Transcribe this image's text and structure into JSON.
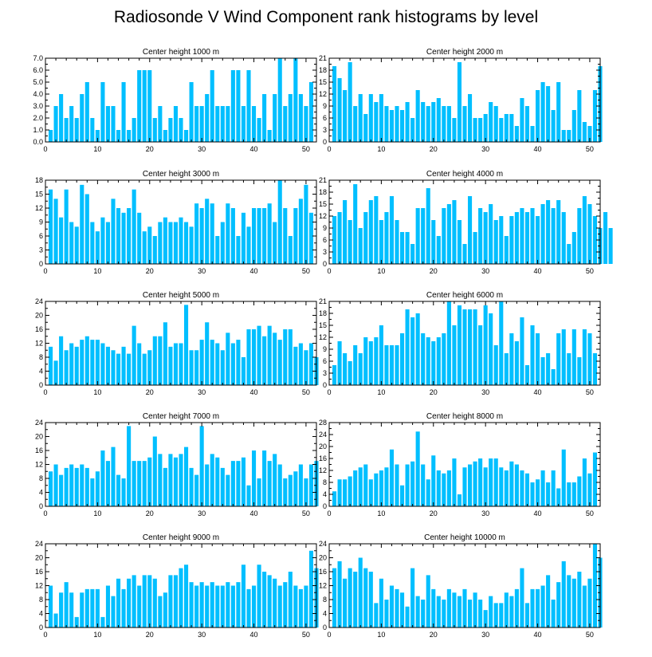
{
  "title": "Radiosonde V Wind Component rank histograms by level",
  "colors": {
    "bar": "#00bfff",
    "axis": "#000000"
  },
  "chart_data": [
    {
      "type": "bar",
      "title": "Center height 1000 m",
      "xlim": [
        0,
        52
      ],
      "ylim": [
        0,
        7
      ],
      "xticks": [
        0,
        10,
        20,
        30,
        40,
        50
      ],
      "yticks": [
        0.0,
        1.0,
        2.0,
        3.0,
        4.0,
        5.0,
        6.0,
        7.0
      ],
      "ytick_labels": [
        "0.0",
        "1.0",
        "2.0",
        "3.0",
        "4.0",
        "5.0",
        "6.0",
        "7.0"
      ],
      "values": [
        1,
        3,
        4,
        2,
        3,
        2,
        4,
        5,
        2,
        1,
        5,
        3,
        3,
        1,
        5,
        1,
        2,
        6,
        6,
        6,
        2,
        3,
        1,
        2,
        3,
        2,
        1,
        5,
        3,
        3,
        4,
        6,
        3,
        3,
        3,
        6,
        6,
        3,
        6,
        3,
        2,
        4,
        1,
        4,
        7,
        3,
        4,
        7,
        4,
        3,
        5
      ]
    },
    {
      "type": "bar",
      "title": "Center height 2000 m",
      "xlim": [
        0,
        52
      ],
      "ylim": [
        0,
        21
      ],
      "xticks": [
        0,
        10,
        20,
        30,
        40,
        50
      ],
      "yticks": [
        0,
        3,
        6,
        9,
        12,
        15,
        18,
        21
      ],
      "ytick_labels": [
        "0",
        "3",
        "6",
        "9",
        "12",
        "15",
        "18",
        "21"
      ],
      "values": [
        19,
        16,
        13,
        20,
        9,
        12,
        7,
        12,
        10,
        12,
        9,
        8,
        9,
        8,
        10,
        6,
        13,
        10,
        9,
        10,
        11,
        9,
        9,
        6,
        20,
        9,
        12,
        6,
        6,
        7,
        10,
        9,
        6,
        7,
        7,
        4,
        11,
        9,
        4,
        13,
        15,
        14,
        8,
        15,
        3,
        3,
        8,
        13,
        5,
        4,
        13,
        19
      ]
    },
    {
      "type": "bar",
      "title": "Center height 3000 m",
      "xlim": [
        0,
        52
      ],
      "ylim": [
        0,
        18
      ],
      "xticks": [
        0,
        10,
        20,
        30,
        40,
        50
      ],
      "yticks": [
        0,
        3,
        6,
        9,
        12,
        15,
        18
      ],
      "ytick_labels": [
        "0",
        "3",
        "6",
        "9",
        "12",
        "15",
        "18"
      ],
      "values": [
        16,
        14,
        10,
        16,
        9,
        8,
        17,
        15,
        9,
        7,
        10,
        9,
        14,
        12,
        11,
        12,
        16,
        11,
        7,
        8,
        6,
        9,
        10,
        9,
        9,
        10,
        9,
        8,
        13,
        12,
        14,
        13,
        6,
        9,
        13,
        12,
        6,
        11,
        8,
        12,
        12,
        12,
        13,
        9,
        18,
        12,
        6,
        12,
        14,
        17,
        11
      ]
    },
    {
      "type": "bar",
      "title": "Center height 4000 m",
      "xlim": [
        0,
        52
      ],
      "ylim": [
        0,
        21
      ],
      "xticks": [
        0,
        10,
        20,
        30,
        40,
        50
      ],
      "yticks": [
        0,
        3,
        6,
        9,
        12,
        15,
        18,
        21
      ],
      "ytick_labels": [
        "0",
        "3",
        "6",
        "9",
        "12",
        "15",
        "18",
        "21"
      ],
      "values": [
        12,
        13,
        16,
        11,
        20,
        9,
        13,
        16,
        17,
        11,
        13,
        17,
        11,
        8,
        8,
        5,
        14,
        14,
        19,
        11,
        7,
        14,
        15,
        16,
        11,
        5,
        17,
        8,
        14,
        13,
        15,
        11,
        12,
        7,
        12,
        13,
        14,
        13,
        14,
        12,
        15,
        16,
        14,
        16,
        13,
        5,
        8,
        14,
        17,
        15,
        12,
        9,
        13,
        9
      ]
    },
    {
      "type": "bar",
      "title": "Center height 5000 m",
      "xlim": [
        0,
        52
      ],
      "ylim": [
        0,
        24
      ],
      "xticks": [
        0,
        10,
        20,
        30,
        40,
        50
      ],
      "yticks": [
        0,
        4,
        8,
        12,
        16,
        20,
        24
      ],
      "ytick_labels": [
        "0",
        "4",
        "8",
        "12",
        "16",
        "20",
        "24"
      ],
      "values": [
        11,
        7,
        14,
        10,
        12,
        11,
        13,
        14,
        13,
        13,
        12,
        11,
        10,
        9,
        11,
        9,
        17,
        12,
        9,
        10,
        14,
        14,
        18,
        11,
        12,
        12,
        23,
        10,
        10,
        13,
        18,
        13,
        12,
        10,
        15,
        12,
        13,
        8,
        16,
        16,
        17,
        14,
        17,
        15,
        13,
        16,
        16,
        11,
        12,
        10,
        12,
        8
      ]
    },
    {
      "type": "bar",
      "title": "Center height 6000 m",
      "xlim": [
        0,
        52
      ],
      "ylim": [
        0,
        21
      ],
      "xticks": [
        0,
        10,
        20,
        30,
        40,
        50
      ],
      "yticks": [
        0,
        3,
        6,
        9,
        12,
        15,
        18,
        21
      ],
      "ytick_labels": [
        "0",
        "3",
        "6",
        "9",
        "12",
        "15",
        "18",
        "21"
      ],
      "values": [
        5,
        11,
        8,
        6,
        10,
        8,
        12,
        11,
        12,
        15,
        10,
        10,
        10,
        13,
        19,
        17,
        18,
        13,
        12,
        11,
        12,
        13,
        21,
        15,
        20,
        19,
        19,
        19,
        15,
        20,
        18,
        10,
        21,
        8,
        13,
        11,
        17,
        5,
        15,
        13,
        7,
        8,
        4,
        13,
        14,
        8,
        14,
        7,
        14,
        13,
        8
      ]
    },
    {
      "type": "bar",
      "title": "Center height 7000 m",
      "xlim": [
        0,
        52
      ],
      "ylim": [
        0,
        24
      ],
      "xticks": [
        0,
        10,
        20,
        30,
        40,
        50
      ],
      "yticks": [
        0,
        4,
        8,
        12,
        16,
        20,
        24
      ],
      "ytick_labels": [
        "0",
        "4",
        "8",
        "12",
        "16",
        "20",
        "24"
      ],
      "values": [
        10,
        12,
        9,
        11,
        12,
        11,
        12,
        11,
        8,
        10,
        16,
        13,
        17,
        9,
        8,
        23,
        13,
        13,
        13,
        14,
        20,
        15,
        11,
        15,
        14,
        15,
        17,
        11,
        9,
        23,
        12,
        15,
        14,
        11,
        9,
        13,
        13,
        14,
        6,
        16,
        8,
        16,
        13,
        15,
        12,
        8,
        9,
        10,
        12,
        8,
        12,
        13
      ]
    },
    {
      "type": "bar",
      "title": "Center height 8000 m",
      "xlim": [
        0,
        52
      ],
      "ylim": [
        0,
        28
      ],
      "xticks": [
        0,
        10,
        20,
        30,
        40,
        50
      ],
      "yticks": [
        0,
        4,
        8,
        12,
        16,
        20,
        24,
        28
      ],
      "ytick_labels": [
        "0",
        "4",
        "8",
        "12",
        "16",
        "20",
        "24",
        "28"
      ],
      "values": [
        5,
        9,
        9,
        10,
        12,
        13,
        14,
        9,
        11,
        12,
        13,
        19,
        14,
        7,
        14,
        15,
        25,
        14,
        9,
        17,
        12,
        11,
        12,
        16,
        4,
        13,
        14,
        15,
        16,
        13,
        16,
        16,
        13,
        12,
        15,
        14,
        12,
        11,
        8,
        9,
        12,
        8,
        12,
        6,
        19,
        8,
        8,
        10,
        16,
        11,
        18
      ]
    },
    {
      "type": "bar",
      "title": "Center height 9000 m",
      "xlim": [
        0,
        52
      ],
      "ylim": [
        0,
        24
      ],
      "xticks": [
        0,
        10,
        20,
        30,
        40,
        50
      ],
      "yticks": [
        0,
        4,
        8,
        12,
        16,
        20,
        24
      ],
      "ytick_labels": [
        "0",
        "4",
        "8",
        "12",
        "16",
        "20",
        "24"
      ],
      "values": [
        12,
        4,
        10,
        13,
        10,
        3,
        10,
        11,
        11,
        11,
        3,
        12,
        9,
        14,
        11,
        14,
        15,
        12,
        15,
        15,
        14,
        9,
        10,
        15,
        15,
        17,
        18,
        13,
        12,
        13,
        12,
        13,
        12,
        12,
        13,
        12,
        13,
        18,
        11,
        12,
        18,
        16,
        15,
        14,
        12,
        13,
        16,
        12,
        11,
        12,
        22,
        17
      ]
    },
    {
      "type": "bar",
      "title": "Center height 10000 m",
      "xlim": [
        0,
        52
      ],
      "ylim": [
        0,
        24
      ],
      "xticks": [
        0,
        10,
        20,
        30,
        40,
        50
      ],
      "yticks": [
        0,
        4,
        8,
        12,
        16,
        20,
        24
      ],
      "ytick_labels": [
        "0",
        "4",
        "8",
        "12",
        "16",
        "20",
        "24"
      ],
      "values": [
        17,
        19,
        14,
        17,
        16,
        20,
        17,
        16,
        7,
        14,
        8,
        12,
        11,
        10,
        6,
        17,
        9,
        8,
        15,
        11,
        9,
        8,
        11,
        10,
        9,
        11,
        8,
        10,
        8,
        5,
        9,
        7,
        7,
        10,
        9,
        11,
        17,
        7,
        11,
        11,
        12,
        15,
        8,
        13,
        19,
        15,
        14,
        16,
        12,
        14,
        24,
        20
      ]
    }
  ]
}
